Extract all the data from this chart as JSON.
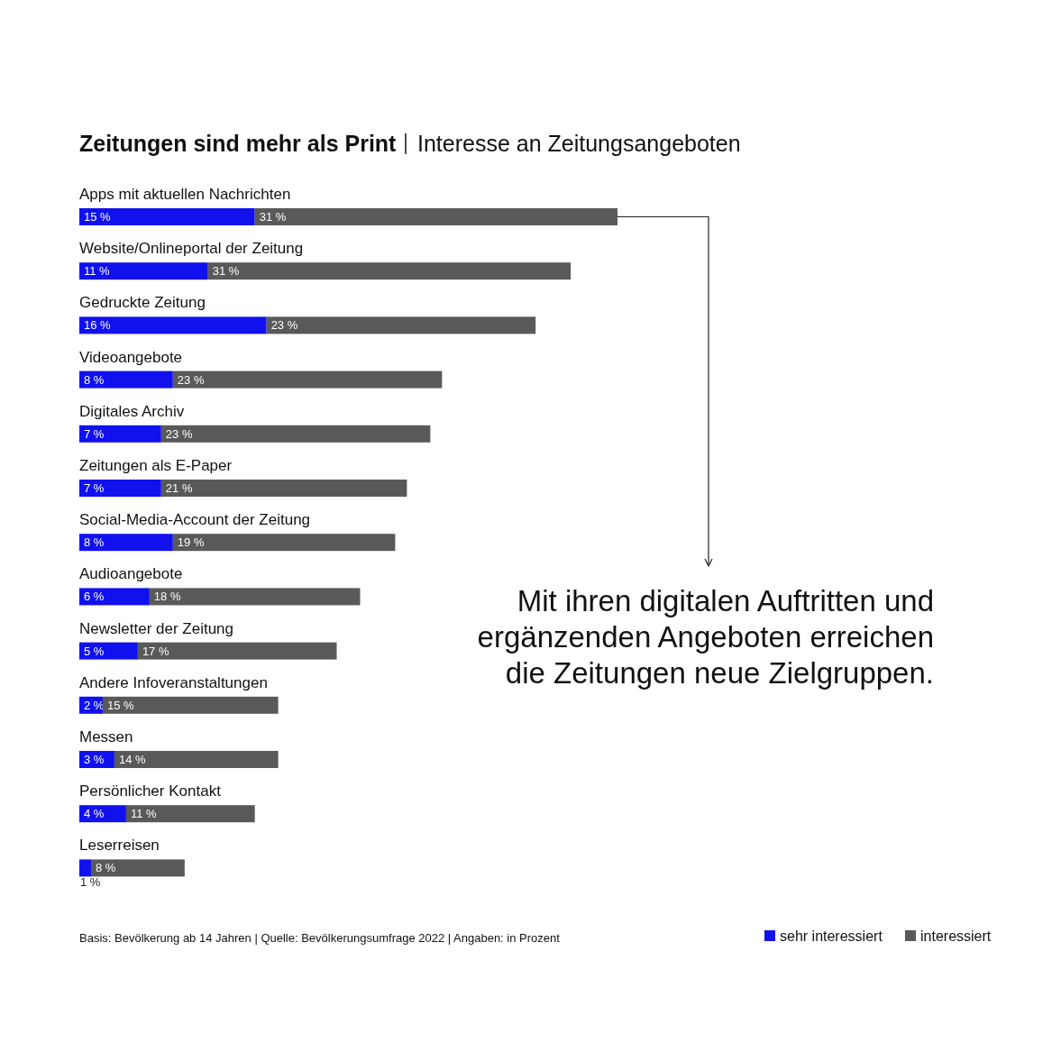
{
  "chart_data": {
    "type": "bar",
    "orientation": "horizontal",
    "stacked": true,
    "title": "Zeitungen sind mehr als Print",
    "subtitle": "Interesse an Zeitungsangeboten",
    "categories": [
      "Apps mit aktuellen Nachrichten",
      "Website/Onlineportal der Zeitung",
      "Gedruckte Zeitung",
      "Videoangebote",
      "Digitales Archiv",
      "Zeitungen als E-Paper",
      "Social-Media-Account der Zeitung",
      "Audioangebote",
      "Newsletter der Zeitung",
      "Andere Infoveranstaltungen",
      "Messen",
      "Persönlicher Kontakt",
      "Leserreisen"
    ],
    "series": [
      {
        "name": "sehr interessiert",
        "color": "#1111ee",
        "values": [
          15,
          11,
          16,
          8,
          7,
          7,
          8,
          6,
          5,
          2,
          3,
          4,
          1
        ],
        "value_labels": [
          "15 %",
          "11 %",
          "16 %",
          "8 %",
          "7 %",
          "7 %",
          "8 %",
          "6 %",
          "5 %",
          "2 %",
          "3 %",
          "4 %",
          "1 %"
        ]
      },
      {
        "name": "interessiert",
        "color": "#595959",
        "values": [
          31,
          31,
          23,
          23,
          23,
          21,
          19,
          18,
          17,
          15,
          14,
          11,
          8
        ],
        "value_labels": [
          "31 %",
          "31 %",
          "23 %",
          "23 %",
          "23 %",
          "21 %",
          "19 %",
          "18 %",
          "17 %",
          "15 %",
          "14 %",
          "11 %",
          "8 %"
        ]
      }
    ],
    "legend": "bottom right",
    "annotations": [
      "Mit ihren digitalen Auftritten und\nergänzenden Angeboten erreichen\ndie Zeitungen neue Zielgruppen.",
      "Basis: Bevölkerung ab 14 Jahren | Quelle: Bevölkerungsumfrage 2022 | Angaben: in Prozent"
    ]
  }
}
